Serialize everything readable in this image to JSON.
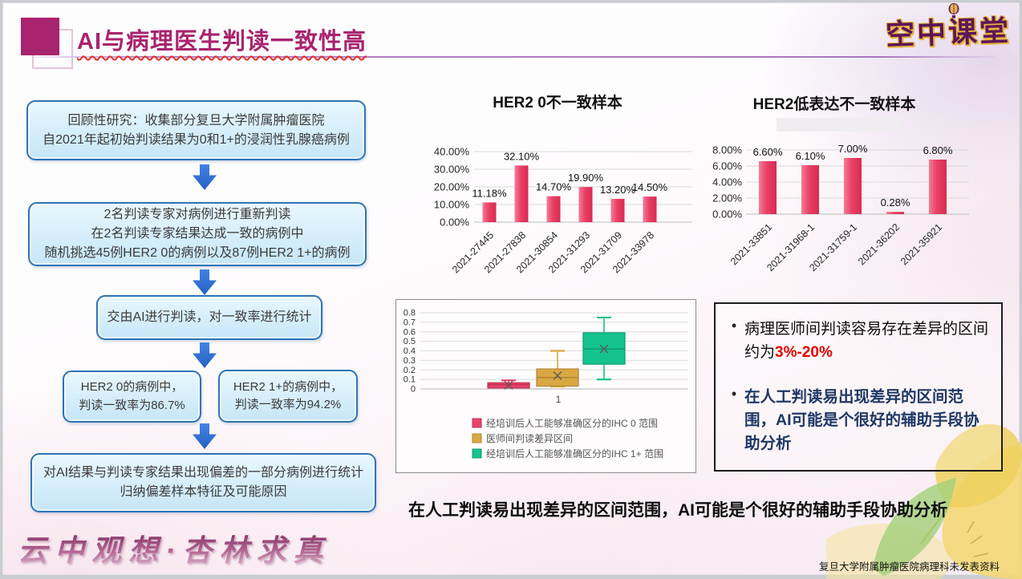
{
  "slide": {
    "title": "AI与病理医生判读一致性高",
    "logo": "空中课堂",
    "watermark": "云中观想·杏林求真",
    "footer_note": "复旦大学附属肿瘤医院病理科未发表资料",
    "bottom_statement": "在人工判读易出现差异的区间范围，AI可能是个很好的辅助手段协助分析"
  },
  "flowchart": {
    "steps": [
      {
        "lines": [
          "回顾性研究：收集部分复旦大学附属肿瘤医院",
          "自2021年起初始判读结果为0和1+的浸润性乳腺癌病例"
        ]
      },
      {
        "lines": [
          "2名判读专家对病例进行重新判读",
          "在2名判读专家结果达成一致的病例中",
          "随机挑选45例HER2 0的病例以及87例HER2 1+的病例"
        ]
      },
      {
        "lines": [
          "交由AI进行判读，对一致率进行统计"
        ]
      },
      {
        "lines": [
          "HER2 0的病例中，",
          "判读一致率为86.7%"
        ]
      },
      {
        "lines": [
          "HER2 1+的病例中，",
          "判读一致率为94.2%"
        ]
      },
      {
        "lines": [
          "对AI结果与判读专家结果出现偏差的一部分病例进行统计",
          "归纳偏差样本特征及可能原因"
        ]
      }
    ]
  },
  "insights": {
    "bullet1_prefix": "病理医师间判读容易存在差异的区间约为",
    "bullet1_highlight": "3%-20%",
    "bullet2": "在人工判读易出现差异的区间范围，AI可能是个很好的辅助手段协助分析"
  },
  "colors": {
    "accent_magenta": "#a8246e",
    "flow_box_border": "#2e74b5",
    "flow_box_fill": "#cde9f9",
    "arrow_blue": "#2b6bd0",
    "bar_pink": "#e84066",
    "box_gold": "#d9a843",
    "box_green": "#14c38d",
    "highlight_red": "#e60000",
    "insight_navy": "#1f3864",
    "logo_purple": "#5c1658",
    "logo_gold": "#e7b23f"
  },
  "chart_data": [
    {
      "type": "bar",
      "title": "HER2 0不一致样本",
      "categories": [
        "2021-27445",
        "2021-27838",
        "2021-30854",
        "2021-31293",
        "2021-31709",
        "2021-33978"
      ],
      "values": [
        11.18,
        32.1,
        14.7,
        19.9,
        13.2,
        14.5
      ],
      "data_labels": [
        "11.18%",
        "32.10%",
        "14.70%",
        "19.90%",
        "13.20%",
        "14.50%"
      ],
      "xlabel": "",
      "ylabel": "",
      "ylim": [
        0,
        40
      ],
      "yticks": [
        0,
        10,
        20,
        30,
        40
      ],
      "ytick_labels": [
        "0.00%",
        "10.00%",
        "20.00%",
        "30.00%",
        "40.00%"
      ],
      "bar_color": "#e84066",
      "grid": true,
      "legend_position": "none"
    },
    {
      "type": "bar",
      "title": "HER2低表达不一致样本",
      "categories": [
        "2021-33851",
        "2021-31968-1",
        "2021-31759-1",
        "2021-36202",
        "2021-35921"
      ],
      "values": [
        6.6,
        6.1,
        7.0,
        0.28,
        6.8
      ],
      "data_labels": [
        "6.60%",
        "6.10%",
        "7.00%",
        "0.28%",
        "6.80%"
      ],
      "xlabel": "",
      "ylabel": "",
      "ylim": [
        0,
        8
      ],
      "yticks": [
        0,
        2,
        4,
        6,
        8
      ],
      "ytick_labels": [
        "0.00%",
        "2.00%",
        "4.00%",
        "6.00%",
        "8.00%"
      ],
      "bar_color": "#e84066",
      "grid": true,
      "legend_position": "none"
    },
    {
      "type": "boxplot",
      "title": "",
      "xtick_label": "1",
      "ylim": [
        0,
        0.8
      ],
      "yticks": [
        0,
        0.1,
        0.2,
        0.3,
        0.4,
        0.5,
        0.6,
        0.7,
        0.8
      ],
      "ytick_labels": [
        "0",
        "0.1",
        "0.2",
        "0.3",
        "0.4",
        "0.5",
        "0.6",
        "0.7",
        "0.8"
      ],
      "grid": true,
      "legend_position": "bottom",
      "series": [
        {
          "name": "经培训后人工能够准确区分的IHC 0 范围",
          "color": "#e8446b",
          "edge": "#c52e52",
          "low": 0.01,
          "q1": 0.01,
          "median": 0.045,
          "q3": 0.065,
          "high": 0.09,
          "mean": 0.04
        },
        {
          "name": "医师间判读差异区间",
          "color": "#d9a843",
          "edge": "#b28430",
          "low": 0.025,
          "q1": 0.03,
          "median": 0.12,
          "q3": 0.21,
          "high": 0.4,
          "mean": 0.14
        },
        {
          "name": "经培训后人工能够准确区分的IHC 1+ 范围",
          "color": "#14c38d",
          "edge": "#0e9a6e",
          "low": 0.1,
          "q1": 0.26,
          "median": 0.42,
          "q3": 0.59,
          "high": 0.75,
          "mean": 0.42
        }
      ]
    }
  ]
}
